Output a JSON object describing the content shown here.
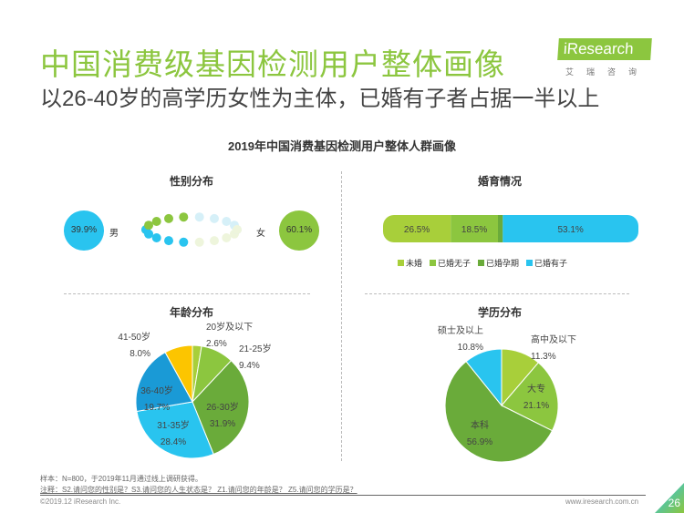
{
  "header": {
    "title": "中国消费级基因检测用户整体画像",
    "subtitle": "以26-40岁的高学历女性为主体，已婚有子者占据一半以上",
    "logo": "iResearch",
    "logo_sub": "艾瑞咨询"
  },
  "chart_title": "2019年中国消费基因检测用户整体人群画像",
  "colors": {
    "lime": "#a8cf3a",
    "green": "#8cc63f",
    "dark_green": "#6aab3a",
    "cyan": "#29c4ef",
    "blue": "#1a9ad6",
    "yellow": "#fcc500"
  },
  "chart_data": [
    {
      "type": "pictogram",
      "title": "性别分布",
      "categories": [
        "男",
        "女"
      ],
      "values": [
        39.9,
        60.1
      ],
      "labels": [
        "39.9%",
        "60.1%"
      ]
    },
    {
      "type": "stacked-bar",
      "title": "婚育情况",
      "categories": [
        "未婚",
        "已婚无子",
        "已婚孕期",
        "已婚有子"
      ],
      "values": [
        26.5,
        18.5,
        1.9,
        53.1
      ],
      "labels": [
        "26.5%",
        "18.5%",
        "",
        "53.1%"
      ],
      "legend": "bottom"
    },
    {
      "type": "pie",
      "title": "年龄分布",
      "categories": [
        "20岁及以下",
        "21-25岁",
        "26-30岁",
        "31-35岁",
        "36-40岁",
        "41-50岁"
      ],
      "values": [
        2.6,
        9.4,
        31.9,
        28.4,
        19.7,
        8.0
      ],
      "labels": [
        "2.6%",
        "9.4%",
        "31.9%",
        "28.4%",
        "19.7%",
        "8.0%"
      ]
    },
    {
      "type": "pie",
      "title": "学历分布",
      "categories": [
        "高中及以下",
        "大专",
        "本科",
        "硕士及以上"
      ],
      "values": [
        11.3,
        21.1,
        56.9,
        10.8
      ],
      "labels": [
        "11.3%",
        "21.1%",
        "56.9%",
        "10.8%"
      ]
    }
  ],
  "footer": {
    "sample": "样本：N=800，于2019年11月通过线上调研获得。",
    "note": "注释：S2.请问您的性别是？S3.请问您的人生状态是？ Z1.请问您的年龄是？ Z5.请问您的学历是？",
    "copyright": "©2019.12 iResearch Inc.",
    "site": "www.iresearch.com.cn",
    "page": "26"
  }
}
